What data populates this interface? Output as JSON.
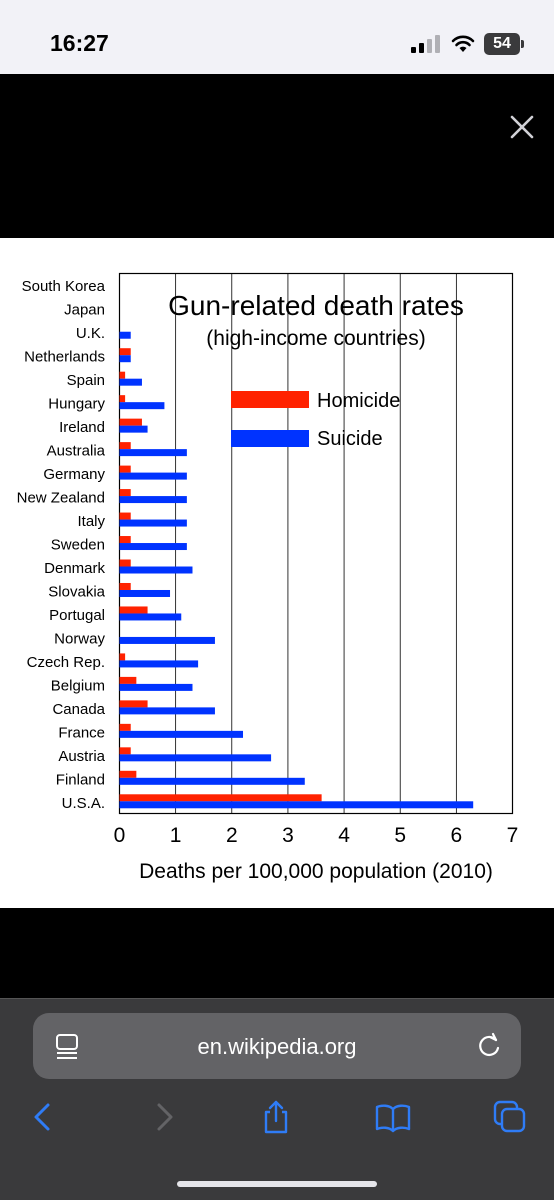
{
  "status_bar": {
    "time": "16:27",
    "battery": "54"
  },
  "browser": {
    "url": "en.wikipedia.org"
  },
  "colors": {
    "homicide": "#ff2200",
    "suicide": "#0033ff"
  },
  "chart_data": {
    "type": "bar",
    "orientation": "horizontal",
    "title": "Gun-related death rates",
    "subtitle": "(high-income countries)",
    "xlabel": "Deaths per 100,000 population (2010)",
    "ylabel": "",
    "xlim": [
      0,
      7
    ],
    "xticks": [
      "0",
      "1",
      "2",
      "3",
      "4",
      "5",
      "6",
      "7"
    ],
    "grid": "vertical",
    "legend": "top-right",
    "categories": [
      "South Korea",
      "Japan",
      "U.K.",
      "Netherlands",
      "Spain",
      "Hungary",
      "Ireland",
      "Australia",
      "Germany",
      "New Zealand",
      "Italy",
      "Sweden",
      "Denmark",
      "Slovakia",
      "Portugal",
      "Norway",
      "Czech Rep.",
      "Belgium",
      "Canada",
      "France",
      "Austria",
      "Finland",
      "U.S.A."
    ],
    "series": [
      {
        "name": "Homicide",
        "values": [
          0,
          0,
          0,
          0.2,
          0.1,
          0.1,
          0.4,
          0.2,
          0.2,
          0.2,
          0.2,
          0.2,
          0.2,
          0.2,
          0.5,
          0,
          0.1,
          0.3,
          0.5,
          0.2,
          0.2,
          0.3,
          3.6
        ]
      },
      {
        "name": "Suicide",
        "values": [
          0,
          0,
          0.2,
          0.2,
          0.4,
          0.8,
          0.5,
          1.2,
          1.2,
          1.2,
          1.2,
          1.2,
          1.3,
          0.9,
          1.1,
          1.7,
          1.4,
          1.3,
          1.7,
          2.2,
          2.7,
          3.3,
          6.3
        ]
      }
    ]
  }
}
